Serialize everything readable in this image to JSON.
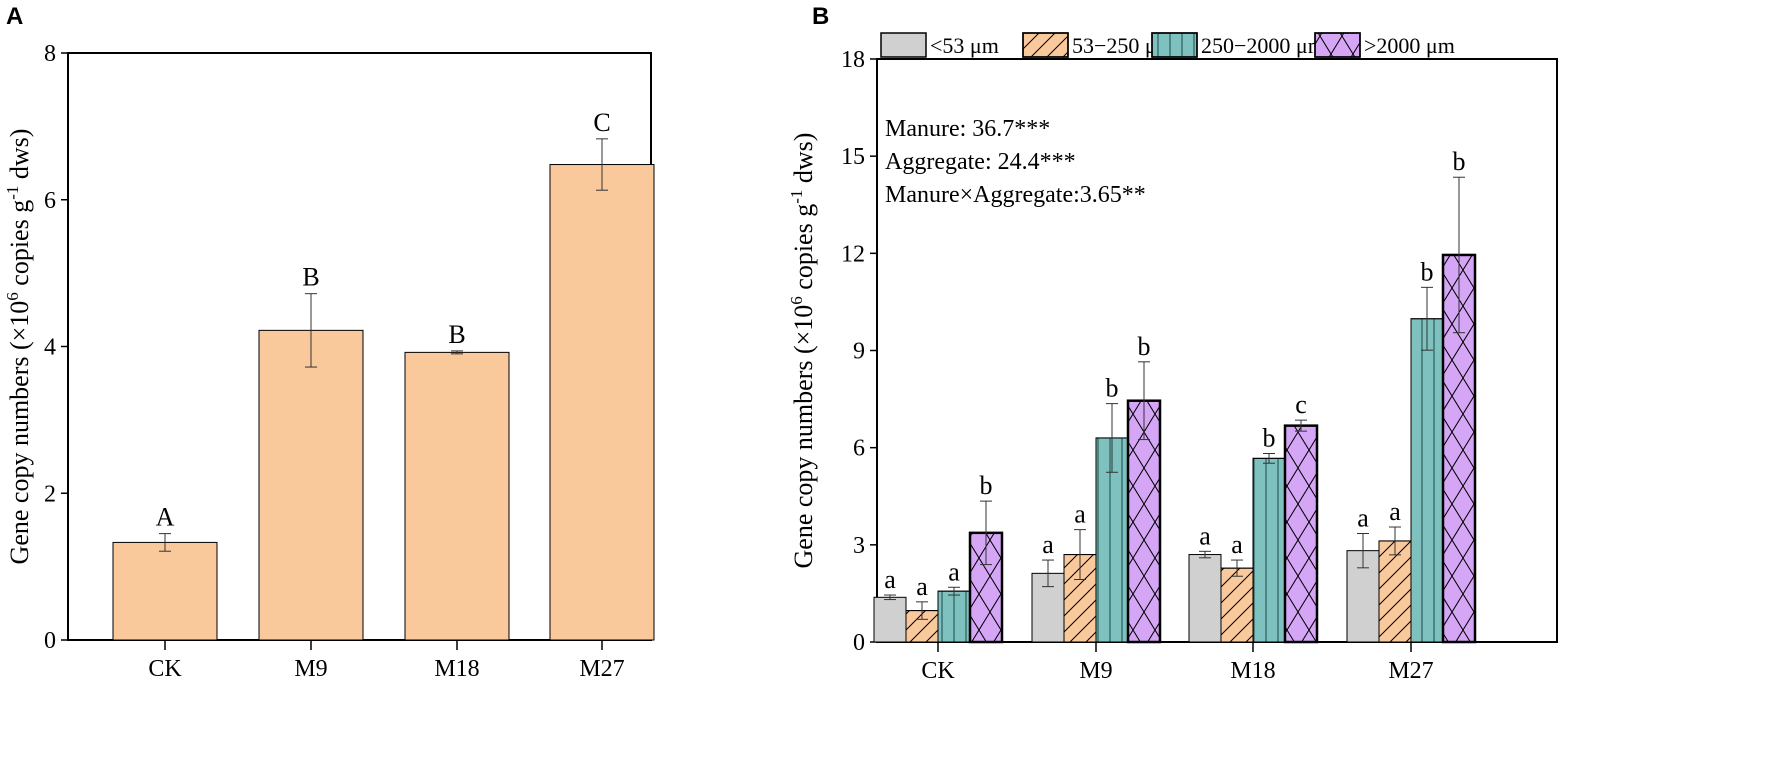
{
  "chart_data": [
    {
      "panel": "A",
      "type": "bar",
      "categories": [
        "CK",
        "M9",
        "M18",
        "M27"
      ],
      "values": [
        1.33,
        4.22,
        3.92,
        6.48
      ],
      "errors": [
        0.12,
        0.5,
        0.02,
        0.35
      ],
      "letters": [
        "A",
        "B",
        "B",
        "C"
      ],
      "color": "#F9C89B",
      "ylim": [
        0,
        8
      ],
      "yticks": [
        0,
        2,
        4,
        6,
        8
      ],
      "ylabel": {
        "pre": "Gene copy numbers (×10",
        "sup1": "6",
        "mid": " copies g",
        "sup2": "-1",
        "post": " dws)"
      },
      "xlabel": ""
    },
    {
      "panel": "B",
      "type": "bar",
      "categories": [
        "CK",
        "M9",
        "M18",
        "M27"
      ],
      "series": [
        {
          "name": "<53 μm",
          "color": "#D0D0D0",
          "pattern": "none",
          "values": [
            1.38,
            2.12,
            2.7,
            2.82
          ],
          "errors": [
            0.07,
            0.41,
            0.1,
            0.53
          ],
          "letters": [
            "a",
            "a",
            "a",
            "a"
          ]
        },
        {
          "name": "53−250 μm",
          "color": "#F9C89B",
          "pattern": "diagonal",
          "values": [
            0.97,
            2.7,
            2.28,
            3.12
          ],
          "errors": [
            0.27,
            0.77,
            0.25,
            0.43
          ],
          "letters": [
            "a",
            "a",
            "a",
            "a"
          ]
        },
        {
          "name": "250−2000 μm",
          "color": "#7FC1BF",
          "pattern": "vertical",
          "values": [
            1.57,
            6.3,
            5.67,
            9.98
          ],
          "errors": [
            0.12,
            1.06,
            0.15,
            0.97
          ],
          "letters": [
            "a",
            "b",
            "b",
            "b"
          ]
        },
        {
          "name": ">2000 μm",
          "color": "#D5A6F6",
          "pattern": "crosshatch",
          "values": [
            3.37,
            7.45,
            6.68,
            11.95
          ],
          "errors": [
            0.98,
            1.2,
            0.17,
            2.4
          ],
          "letters": [
            "b",
            "b",
            "c",
            "b"
          ]
        }
      ],
      "annotations": [
        "Manure: 36.7***",
        "Aggregate: 24.4***",
        "Manure×Aggregate:3.65**"
      ],
      "ylim": [
        0,
        18
      ],
      "yticks": [
        0,
        3,
        6,
        9,
        12,
        15,
        18
      ],
      "ylabel": {
        "pre": "Gene copy numbers (×10",
        "sup1": "6",
        "mid": " copies g",
        "sup2": "-1",
        "post": " dws)"
      },
      "legend_position": "top",
      "xlabel": ""
    }
  ]
}
